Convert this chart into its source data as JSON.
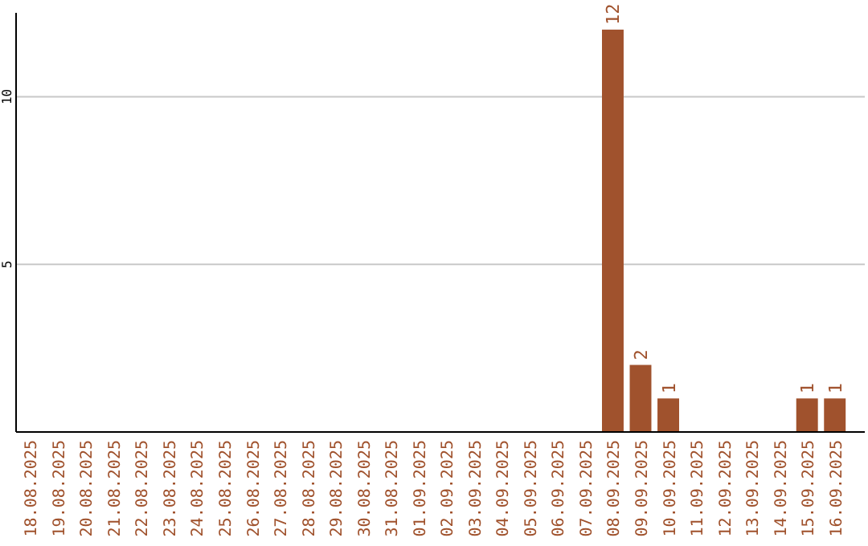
{
  "chart_data": {
    "type": "bar",
    "categories": [
      "18.08.2025",
      "19.08.2025",
      "20.08.2025",
      "21.08.2025",
      "22.08.2025",
      "23.08.2025",
      "24.08.2025",
      "25.08.2025",
      "26.08.2025",
      "27.08.2025",
      "28.08.2025",
      "29.08.2025",
      "30.08.2025",
      "31.08.2025",
      "01.09.2025",
      "02.09.2025",
      "03.09.2025",
      "04.09.2025",
      "05.09.2025",
      "06.09.2025",
      "07.09.2025",
      "08.09.2025",
      "09.09.2025",
      "10.09.2025",
      "11.09.2025",
      "12.09.2025",
      "13.09.2025",
      "14.09.2025",
      "15.09.2025",
      "16.09.2025"
    ],
    "values": [
      0,
      0,
      0,
      0,
      0,
      0,
      0,
      0,
      0,
      0,
      0,
      0,
      0,
      0,
      0,
      0,
      0,
      0,
      0,
      0,
      0,
      12,
      2,
      1,
      0,
      0,
      0,
      0,
      1,
      1
    ],
    "value_labels": [
      null,
      null,
      null,
      null,
      null,
      null,
      null,
      null,
      null,
      null,
      null,
      null,
      null,
      null,
      null,
      null,
      null,
      null,
      null,
      null,
      null,
      "12",
      "2",
      "1",
      null,
      null,
      null,
      null,
      "1",
      "1"
    ],
    "color": "#a0522d",
    "ylim": [
      0,
      12.5
    ],
    "yticks": [
      5,
      10
    ],
    "grid": "y"
  }
}
